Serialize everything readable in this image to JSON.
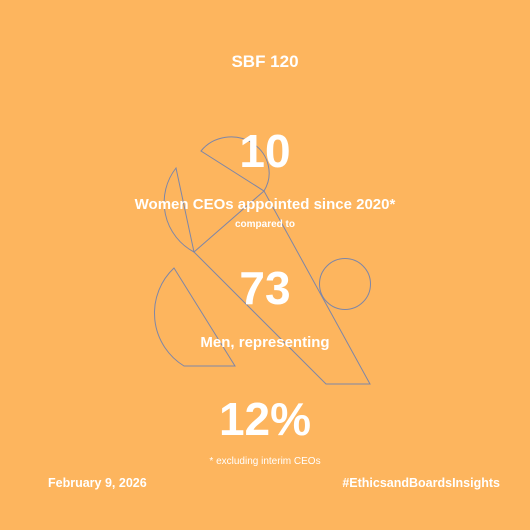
{
  "colors": {
    "background": "#FDB55E",
    "text": "#FFFFFF",
    "outline": "#7D86A8"
  },
  "headline": {
    "index_name": "SBF 120"
  },
  "stats": {
    "women_count": "10",
    "women_label": "Women CEOs appointed since 2020*",
    "compared_label": "compared to",
    "men_count": "73",
    "men_label": "Men, representing",
    "percentage": "12%"
  },
  "footnote": "* excluding interim CEOs",
  "footer": {
    "date": "February 9, 2026",
    "hashtag": "#EthicsandBoardsInsights"
  }
}
